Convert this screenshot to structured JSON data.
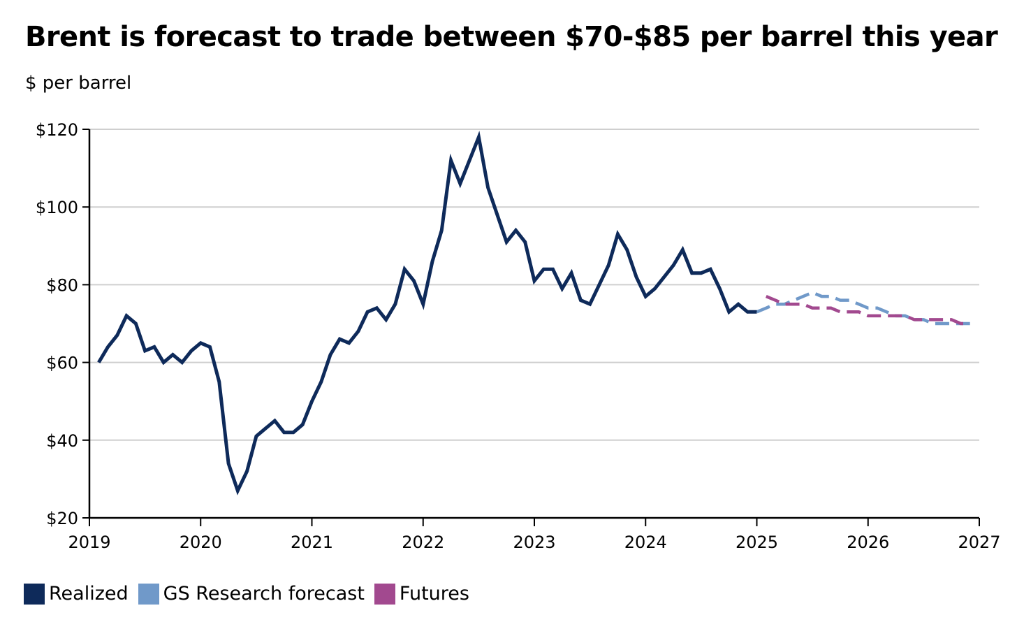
{
  "title": "Brent is forecast to trade between $70-$85 per barrel this year",
  "colors": {
    "realized": "#0e2a5a",
    "forecast": "#7099c9",
    "futures": "#a2498f",
    "grid": "#cfcfcf"
  },
  "chart_data": {
    "type": "line",
    "title": "Brent is forecast to trade between $70-$85 per barrel this year",
    "ylabel": "$ per barrel",
    "xlabel": "",
    "xlim": [
      2019,
      2027
    ],
    "ylim": [
      20,
      120
    ],
    "yticks": [
      20,
      40,
      60,
      80,
      100,
      120
    ],
    "ytick_labels": [
      "$20",
      "$40",
      "$60",
      "$80",
      "$100",
      "$120"
    ],
    "xticks": [
      2019,
      2020,
      2021,
      2022,
      2023,
      2024,
      2025,
      2026,
      2027
    ],
    "xtick_labels": [
      "2019",
      "2020",
      "2021",
      "2022",
      "2023",
      "2024",
      "2025",
      "2026",
      "2027"
    ],
    "grid": "horizontal",
    "legend_position": "bottom-left",
    "series": [
      {
        "name": "Realized",
        "style": "solid",
        "x": [
          "2019-02",
          "2019-03",
          "2019-04",
          "2019-05",
          "2019-06",
          "2019-07",
          "2019-08",
          "2019-09",
          "2019-10",
          "2019-11",
          "2019-12",
          "2020-01",
          "2020-02",
          "2020-03",
          "2020-04",
          "2020-05",
          "2020-06",
          "2020-07",
          "2020-08",
          "2020-09",
          "2020-10",
          "2020-11",
          "2020-12",
          "2021-01",
          "2021-02",
          "2021-03",
          "2021-04",
          "2021-05",
          "2021-06",
          "2021-07",
          "2021-08",
          "2021-09",
          "2021-10",
          "2021-11",
          "2021-12",
          "2022-01",
          "2022-02",
          "2022-03",
          "2022-04",
          "2022-05",
          "2022-06",
          "2022-07",
          "2022-08",
          "2022-09",
          "2022-10",
          "2022-11",
          "2022-12",
          "2023-01",
          "2023-02",
          "2023-03",
          "2023-04",
          "2023-05",
          "2023-06",
          "2023-07",
          "2023-08",
          "2023-09",
          "2023-10",
          "2023-11",
          "2023-12",
          "2024-01",
          "2024-02",
          "2024-03",
          "2024-04",
          "2024-05",
          "2024-06",
          "2024-07",
          "2024-08",
          "2024-09",
          "2024-10",
          "2024-11",
          "2024-12",
          "2025-01"
        ],
        "values": [
          60,
          64,
          67,
          72,
          70,
          63,
          64,
          60,
          62,
          60,
          63,
          65,
          64,
          55,
          34,
          27,
          32,
          41,
          43,
          45,
          42,
          42,
          44,
          50,
          55,
          62,
          66,
          65,
          68,
          73,
          74,
          71,
          75,
          84,
          81,
          75,
          86,
          94,
          112,
          106,
          112,
          118,
          105,
          98,
          91,
          94,
          91,
          81,
          84,
          84,
          79,
          83,
          76,
          75,
          80,
          85,
          93,
          89,
          82,
          77,
          79,
          82,
          85,
          89,
          83,
          83,
          84,
          79,
          73,
          75,
          73,
          73
        ]
      },
      {
        "name": "GS Research forecast",
        "style": "dashed",
        "x": [
          "2025-01",
          "2025-02",
          "2025-03",
          "2025-04",
          "2025-05",
          "2025-06",
          "2025-07",
          "2025-08",
          "2025-09",
          "2025-10",
          "2025-11",
          "2025-12",
          "2026-01",
          "2026-02",
          "2026-03",
          "2026-04",
          "2026-05",
          "2026-06",
          "2026-07",
          "2026-08",
          "2026-09",
          "2026-10",
          "2026-11",
          "2026-12"
        ],
        "values": [
          73,
          74,
          75,
          75,
          76,
          77,
          78,
          77,
          77,
          76,
          76,
          75,
          74,
          74,
          73,
          72,
          72,
          71,
          71,
          70,
          70,
          70,
          70,
          70
        ]
      },
      {
        "name": "Futures",
        "style": "dashed",
        "x": [
          "2025-02",
          "2025-03",
          "2025-04",
          "2025-05",
          "2025-06",
          "2025-07",
          "2025-08",
          "2025-09",
          "2025-10",
          "2025-11",
          "2025-12",
          "2026-01",
          "2026-02",
          "2026-03",
          "2026-04",
          "2026-05",
          "2026-06",
          "2026-07",
          "2026-08",
          "2026-09",
          "2026-10",
          "2026-11",
          "2026-12"
        ],
        "values": [
          77,
          76,
          75,
          75,
          75,
          74,
          74,
          74,
          73,
          73,
          73,
          72,
          72,
          72,
          72,
          72,
          71,
          71,
          71,
          71,
          71,
          70,
          70
        ]
      }
    ]
  }
}
